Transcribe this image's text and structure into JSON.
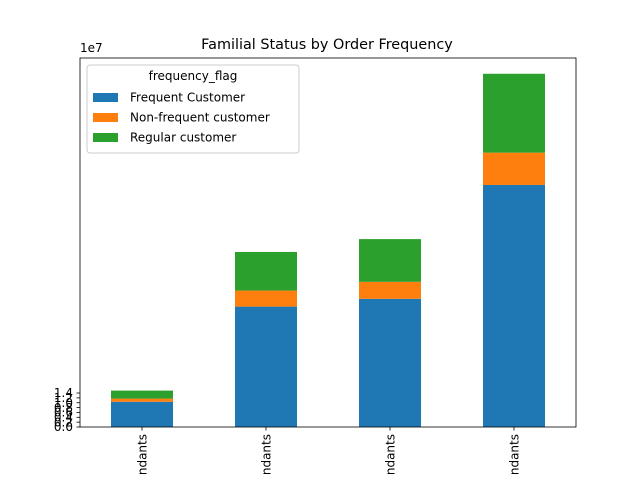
{
  "chart_data": {
    "type": "bar",
    "stacked": true,
    "title": "Familial Status by Order Frequency",
    "xlabel": "",
    "ylabel": "",
    "y_offset_label": "1e7",
    "ylim": [
      0,
      15.2
    ],
    "yticks": [
      0.0,
      0.2,
      0.4,
      0.6,
      0.8,
      1.0,
      1.2,
      1.4
    ],
    "ytick_labels": [
      "0.0",
      "0.2",
      "0.4",
      "0.6",
      "0.8",
      "1.0",
      "1.2",
      "1.4"
    ],
    "categories": [
      "ndants",
      "ndants",
      "ndants",
      "ndants"
    ],
    "series": [
      {
        "name": "Frequent Customer",
        "color": "#1f77b4",
        "values": [
          1.04,
          4.96,
          5.28,
          9.97
        ]
      },
      {
        "name": "Non-frequent customer",
        "color": "#ff7f0e",
        "values": [
          0.13,
          0.66,
          0.7,
          1.33
        ]
      },
      {
        "name": "Regular customer",
        "color": "#2ca02c",
        "values": [
          0.33,
          1.59,
          1.76,
          3.25
        ]
      }
    ],
    "legend": {
      "title": "frequency_flag",
      "placement": "top-left"
    },
    "grid": false
  }
}
